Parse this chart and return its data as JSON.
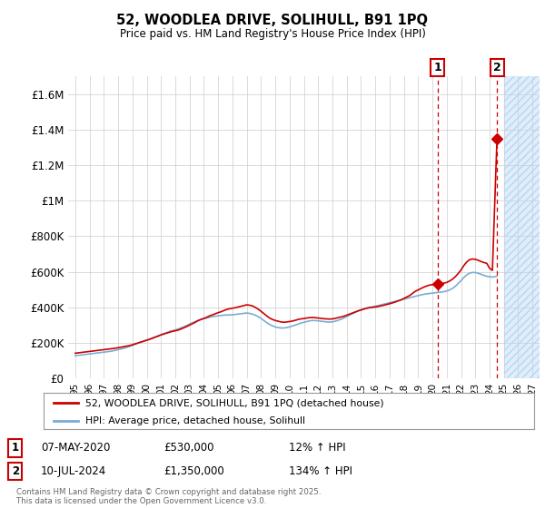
{
  "title": "52, WOODLEA DRIVE, SOLIHULL, B91 1PQ",
  "subtitle": "Price paid vs. HM Land Registry's House Price Index (HPI)",
  "legend_label_red": "52, WOODLEA DRIVE, SOLIHULL, B91 1PQ (detached house)",
  "legend_label_blue": "HPI: Average price, detached house, Solihull",
  "annotation1_label": "1",
  "annotation1_date": "07-MAY-2020",
  "annotation1_price": "£530,000",
  "annotation1_hpi": "12% ↑ HPI",
  "annotation1_year": 2020.35,
  "annotation1_value": 530000,
  "annotation2_label": "2",
  "annotation2_date": "10-JUL-2024",
  "annotation2_price": "£1,350,000",
  "annotation2_hpi": "134% ↑ HPI",
  "annotation2_year": 2024.52,
  "annotation2_value": 1350000,
  "copyright": "Contains HM Land Registry data © Crown copyright and database right 2025.\nThis data is licensed under the Open Government Licence v3.0.",
  "ylim": [
    0,
    1700000
  ],
  "xlim": [
    1994.5,
    2027.5
  ],
  "yticks": [
    0,
    200000,
    400000,
    600000,
    800000,
    1000000,
    1200000,
    1400000,
    1600000
  ],
  "ytick_labels": [
    "£0",
    "£200K",
    "£400K",
    "£600K",
    "£800K",
    "£1M",
    "£1.2M",
    "£1.4M",
    "£1.6M"
  ],
  "xticks": [
    1995,
    1996,
    1997,
    1998,
    1999,
    2000,
    2001,
    2002,
    2003,
    2004,
    2005,
    2006,
    2007,
    2008,
    2009,
    2010,
    2011,
    2012,
    2013,
    2014,
    2015,
    2016,
    2017,
    2018,
    2019,
    2020,
    2021,
    2022,
    2023,
    2024,
    2025,
    2026,
    2027
  ],
  "xtick_labels": [
    "95",
    "96",
    "97",
    "98",
    "99",
    "00",
    "01",
    "02",
    "03",
    "04",
    "05",
    "06",
    "07",
    "08",
    "09",
    "10",
    "11",
    "12",
    "13",
    "14",
    "15",
    "16",
    "17",
    "18",
    "19",
    "20",
    "21",
    "22",
    "23",
    "24",
    "25",
    "26",
    "27"
  ],
  "future_shade_start": 2025.0,
  "red_color": "#cc0000",
  "blue_color": "#7aadd4",
  "shade_color": "#ddeeff",
  "hatch_color": "#c0d4e8",
  "bg_color": "#ffffff",
  "grid_color": "#cccccc",
  "red_x": [
    1995.0,
    1995.2,
    1995.4,
    1995.6,
    1995.8,
    1996.0,
    1996.2,
    1996.4,
    1996.6,
    1996.8,
    1997.0,
    1997.2,
    1997.4,
    1997.6,
    1997.8,
    1998.0,
    1998.2,
    1998.4,
    1998.6,
    1998.8,
    1999.0,
    1999.2,
    1999.4,
    1999.6,
    1999.8,
    2000.0,
    2000.2,
    2000.4,
    2000.6,
    2000.8,
    2001.0,
    2001.2,
    2001.4,
    2001.6,
    2001.8,
    2002.0,
    2002.2,
    2002.4,
    2002.6,
    2002.8,
    2003.0,
    2003.2,
    2003.4,
    2003.6,
    2003.8,
    2004.0,
    2004.2,
    2004.4,
    2004.6,
    2004.8,
    2005.0,
    2005.2,
    2005.4,
    2005.6,
    2005.8,
    2006.0,
    2006.2,
    2006.4,
    2006.6,
    2006.8,
    2007.0,
    2007.2,
    2007.4,
    2007.6,
    2007.8,
    2008.0,
    2008.2,
    2008.4,
    2008.6,
    2008.8,
    2009.0,
    2009.2,
    2009.4,
    2009.6,
    2009.8,
    2010.0,
    2010.2,
    2010.4,
    2010.6,
    2010.8,
    2011.0,
    2011.2,
    2011.4,
    2011.6,
    2011.8,
    2012.0,
    2012.2,
    2012.4,
    2012.6,
    2012.8,
    2013.0,
    2013.2,
    2013.4,
    2013.6,
    2013.8,
    2014.0,
    2014.2,
    2014.4,
    2014.6,
    2014.8,
    2015.0,
    2015.2,
    2015.4,
    2015.6,
    2015.8,
    2016.0,
    2016.2,
    2016.4,
    2016.6,
    2016.8,
    2017.0,
    2017.2,
    2017.4,
    2017.6,
    2017.8,
    2018.0,
    2018.2,
    2018.4,
    2018.6,
    2018.8,
    2019.0,
    2019.2,
    2019.4,
    2019.6,
    2019.8,
    2020.0,
    2020.2,
    2020.35,
    2020.6,
    2020.8,
    2021.0,
    2021.2,
    2021.4,
    2021.6,
    2021.8,
    2022.0,
    2022.2,
    2022.4,
    2022.6,
    2022.8,
    2023.0,
    2023.2,
    2023.4,
    2023.6,
    2023.8,
    2024.0,
    2024.2,
    2024.52
  ],
  "red_y": [
    142000,
    144000,
    146000,
    148000,
    150000,
    152000,
    154000,
    156000,
    158000,
    160000,
    162000,
    164000,
    166000,
    168000,
    170000,
    173000,
    176000,
    179000,
    182000,
    185000,
    190000,
    195000,
    200000,
    205000,
    210000,
    215000,
    220000,
    226000,
    232000,
    238000,
    245000,
    250000,
    255000,
    260000,
    265000,
    268000,
    272000,
    278000,
    285000,
    292000,
    300000,
    308000,
    316000,
    325000,
    332000,
    338000,
    344000,
    352000,
    358000,
    364000,
    370000,
    375000,
    382000,
    388000,
    392000,
    395000,
    398000,
    402000,
    406000,
    410000,
    414000,
    412000,
    408000,
    400000,
    390000,
    378000,
    365000,
    352000,
    340000,
    332000,
    326000,
    322000,
    318000,
    316000,
    318000,
    320000,
    323000,
    327000,
    332000,
    335000,
    337000,
    340000,
    342000,
    343000,
    342000,
    340000,
    338000,
    336000,
    335000,
    334000,
    335000,
    338000,
    342000,
    346000,
    350000,
    356000,
    362000,
    368000,
    374000,
    380000,
    385000,
    390000,
    395000,
    398000,
    400000,
    402000,
    405000,
    408000,
    412000,
    416000,
    420000,
    425000,
    430000,
    436000,
    442000,
    450000,
    458000,
    466000,
    478000,
    490000,
    498000,
    506000,
    514000,
    520000,
    525000,
    528000,
    530000,
    530000,
    532000,
    536000,
    540000,
    548000,
    558000,
    572000,
    590000,
    610000,
    635000,
    655000,
    668000,
    672000,
    670000,
    665000,
    658000,
    652000,
    648000,
    620000,
    608000,
    1350000
  ],
  "blue_x": [
    1995.0,
    1995.2,
    1995.4,
    1995.6,
    1995.8,
    1996.0,
    1996.2,
    1996.4,
    1996.6,
    1996.8,
    1997.0,
    1997.2,
    1997.4,
    1997.6,
    1997.8,
    1998.0,
    1998.2,
    1998.4,
    1998.6,
    1998.8,
    1999.0,
    1999.2,
    1999.4,
    1999.6,
    1999.8,
    2000.0,
    2000.2,
    2000.4,
    2000.6,
    2000.8,
    2001.0,
    2001.2,
    2001.4,
    2001.6,
    2001.8,
    2002.0,
    2002.2,
    2002.4,
    2002.6,
    2002.8,
    2003.0,
    2003.2,
    2003.4,
    2003.6,
    2003.8,
    2004.0,
    2004.2,
    2004.4,
    2004.6,
    2004.8,
    2005.0,
    2005.2,
    2005.4,
    2005.6,
    2005.8,
    2006.0,
    2006.2,
    2006.4,
    2006.6,
    2006.8,
    2007.0,
    2007.2,
    2007.4,
    2007.6,
    2007.8,
    2008.0,
    2008.2,
    2008.4,
    2008.6,
    2008.8,
    2009.0,
    2009.2,
    2009.4,
    2009.6,
    2009.8,
    2010.0,
    2010.2,
    2010.4,
    2010.6,
    2010.8,
    2011.0,
    2011.2,
    2011.4,
    2011.6,
    2011.8,
    2012.0,
    2012.2,
    2012.4,
    2012.6,
    2012.8,
    2013.0,
    2013.2,
    2013.4,
    2013.6,
    2013.8,
    2014.0,
    2014.2,
    2014.4,
    2014.6,
    2014.8,
    2015.0,
    2015.2,
    2015.4,
    2015.6,
    2015.8,
    2016.0,
    2016.2,
    2016.4,
    2016.6,
    2016.8,
    2017.0,
    2017.2,
    2017.4,
    2017.6,
    2017.8,
    2018.0,
    2018.2,
    2018.4,
    2018.6,
    2018.8,
    2019.0,
    2019.2,
    2019.4,
    2019.6,
    2019.8,
    2020.0,
    2020.2,
    2020.4,
    2020.6,
    2020.8,
    2021.0,
    2021.2,
    2021.4,
    2021.6,
    2021.8,
    2022.0,
    2022.2,
    2022.4,
    2022.6,
    2022.8,
    2023.0,
    2023.2,
    2023.4,
    2023.6,
    2023.8,
    2024.0,
    2024.2,
    2024.52
  ],
  "blue_y": [
    128000,
    130000,
    132000,
    134000,
    136000,
    138000,
    140000,
    142000,
    144000,
    146000,
    148000,
    150000,
    152000,
    155000,
    158000,
    162000,
    166000,
    170000,
    175000,
    180000,
    186000,
    192000,
    198000,
    204000,
    210000,
    216000,
    222000,
    228000,
    234000,
    240000,
    246000,
    252000,
    258000,
    264000,
    268000,
    273000,
    278000,
    284000,
    291000,
    298000,
    306000,
    313000,
    320000,
    327000,
    332000,
    336000,
    340000,
    344000,
    348000,
    350000,
    352000,
    354000,
    356000,
    357000,
    357000,
    358000,
    360000,
    362000,
    364000,
    366000,
    368000,
    366000,
    362000,
    356000,
    348000,
    338000,
    326000,
    314000,
    304000,
    296000,
    290000,
    286000,
    284000,
    284000,
    286000,
    290000,
    295000,
    300000,
    306000,
    312000,
    316000,
    320000,
    324000,
    326000,
    326000,
    324000,
    322000,
    320000,
    318000,
    317000,
    318000,
    322000,
    327000,
    333000,
    340000,
    348000,
    356000,
    364000,
    372000,
    380000,
    386000,
    392000,
    396000,
    400000,
    403000,
    406000,
    410000,
    414000,
    418000,
    422000,
    426000,
    430000,
    434000,
    438000,
    442000,
    446000,
    450000,
    454000,
    458000,
    462000,
    466000,
    470000,
    473000,
    476000,
    478000,
    480000,
    482000,
    484000,
    486000,
    488000,
    492000,
    498000,
    506000,
    518000,
    534000,
    550000,
    568000,
    582000,
    592000,
    596000,
    596000,
    592000,
    586000,
    580000,
    575000,
    572000,
    570000,
    575000
  ]
}
